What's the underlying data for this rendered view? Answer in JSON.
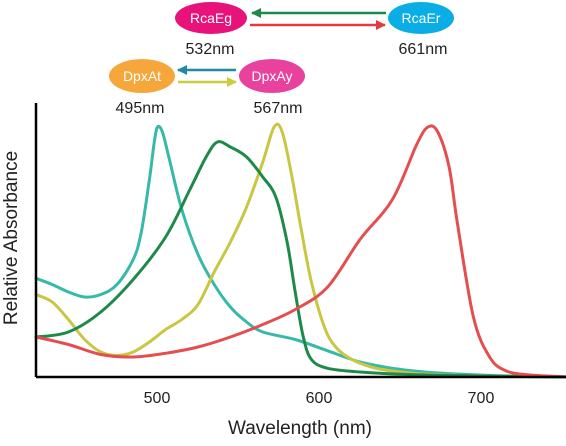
{
  "chart_data": {
    "type": "line",
    "xlabel": "Wavelength (nm)",
    "ylabel": "Relative Absorbance",
    "xlim": [
      420,
      750
    ],
    "ylim": [
      0,
      1.0
    ],
    "xticks": [
      500,
      600,
      700
    ],
    "grid": false,
    "series": [
      {
        "key": "DpxAt",
        "color": "#36b9a9",
        "points": [
          [
            420,
            0.395
          ],
          [
            430,
            0.37
          ],
          [
            440,
            0.34
          ],
          [
            450,
            0.32
          ],
          [
            460,
            0.33
          ],
          [
            470,
            0.37
          ],
          [
            480,
            0.47
          ],
          [
            485,
            0.58
          ],
          [
            490,
            0.79
          ],
          [
            493,
            0.94
          ],
          [
            495,
            1.0
          ],
          [
            498,
            0.98
          ],
          [
            502,
            0.88
          ],
          [
            510,
            0.67
          ],
          [
            520,
            0.49
          ],
          [
            530,
            0.37
          ],
          [
            540,
            0.28
          ],
          [
            550,
            0.22
          ],
          [
            560,
            0.18
          ],
          [
            580,
            0.15
          ],
          [
            600,
            0.105
          ],
          [
            620,
            0.06
          ],
          [
            640,
            0.035
          ],
          [
            660,
            0.02
          ],
          [
            680,
            0.012
          ],
          [
            700,
            0.006
          ],
          [
            720,
            0.003
          ],
          [
            750,
            0.0
          ]
        ]
      },
      {
        "key": "DpxAy",
        "color": "#c9c644",
        "points": [
          [
            420,
            0.33
          ],
          [
            430,
            0.3
          ],
          [
            440,
            0.23
          ],
          [
            450,
            0.15
          ],
          [
            460,
            0.1
          ],
          [
            470,
            0.086
          ],
          [
            480,
            0.1
          ],
          [
            490,
            0.14
          ],
          [
            500,
            0.19
          ],
          [
            510,
            0.23
          ],
          [
            520,
            0.29
          ],
          [
            530,
            0.42
          ],
          [
            540,
            0.54
          ],
          [
            550,
            0.68
          ],
          [
            560,
            0.86
          ],
          [
            567,
            1.0
          ],
          [
            572,
            0.98
          ],
          [
            578,
            0.8
          ],
          [
            584,
            0.58
          ],
          [
            590,
            0.38
          ],
          [
            598,
            0.2
          ],
          [
            605,
            0.12
          ],
          [
            615,
            0.07
          ],
          [
            630,
            0.035
          ],
          [
            645,
            0.02
          ],
          [
            660,
            0.012
          ],
          [
            700,
            0.004
          ],
          [
            750,
            0.0
          ]
        ]
      },
      {
        "key": "RcaEg",
        "color": "#1e8a4a",
        "points": [
          [
            420,
            0.16
          ],
          [
            440,
            0.18
          ],
          [
            460,
            0.26
          ],
          [
            480,
            0.39
          ],
          [
            500,
            0.56
          ],
          [
            515,
            0.75
          ],
          [
            525,
            0.88
          ],
          [
            532,
            0.94
          ],
          [
            540,
            0.92
          ],
          [
            550,
            0.88
          ],
          [
            560,
            0.8
          ],
          [
            568,
            0.72
          ],
          [
            575,
            0.54
          ],
          [
            580,
            0.34
          ],
          [
            585,
            0.16
          ],
          [
            590,
            0.07
          ],
          [
            600,
            0.035
          ],
          [
            620,
            0.02
          ],
          [
            650,
            0.01
          ],
          [
            700,
            0.004
          ],
          [
            750,
            0.0
          ]
        ]
      },
      {
        "key": "RcaEr",
        "color": "#e44e4e",
        "points": [
          [
            420,
            0.16
          ],
          [
            440,
            0.13
          ],
          [
            460,
            0.09
          ],
          [
            480,
            0.08
          ],
          [
            500,
            0.095
          ],
          [
            520,
            0.12
          ],
          [
            540,
            0.16
          ],
          [
            560,
            0.21
          ],
          [
            580,
            0.27
          ],
          [
            600,
            0.36
          ],
          [
            620,
            0.55
          ],
          [
            640,
            0.71
          ],
          [
            655,
            0.93
          ],
          [
            662,
            1.0
          ],
          [
            668,
            0.98
          ],
          [
            675,
            0.84
          ],
          [
            680,
            0.62
          ],
          [
            690,
            0.24
          ],
          [
            700,
            0.08
          ],
          [
            710,
            0.025
          ],
          [
            725,
            0.008
          ],
          [
            750,
            0.0
          ]
        ]
      }
    ],
    "annotations": [
      {
        "key": "RcaEg",
        "label": "RcaEg",
        "wavelength": "532nm",
        "fill": "#e7137a"
      },
      {
        "key": "RcaEr",
        "label": "RcaEr",
        "wavelength": "661nm",
        "fill": "#0aaee4"
      },
      {
        "key": "DpxAt",
        "label": "DpxAt",
        "wavelength": "495nm",
        "fill": "#f6a73b"
      },
      {
        "key": "DpxAy",
        "label": "DpxAy",
        "wavelength": "567nm",
        "fill": "#e8429e"
      }
    ],
    "arrow_colors": {
      "rca_forward": "#e63a3c",
      "rca_back": "#1e8a4a",
      "dpx_forward": "#c8cf3e",
      "dpx_back": "#1f8aa0"
    }
  }
}
